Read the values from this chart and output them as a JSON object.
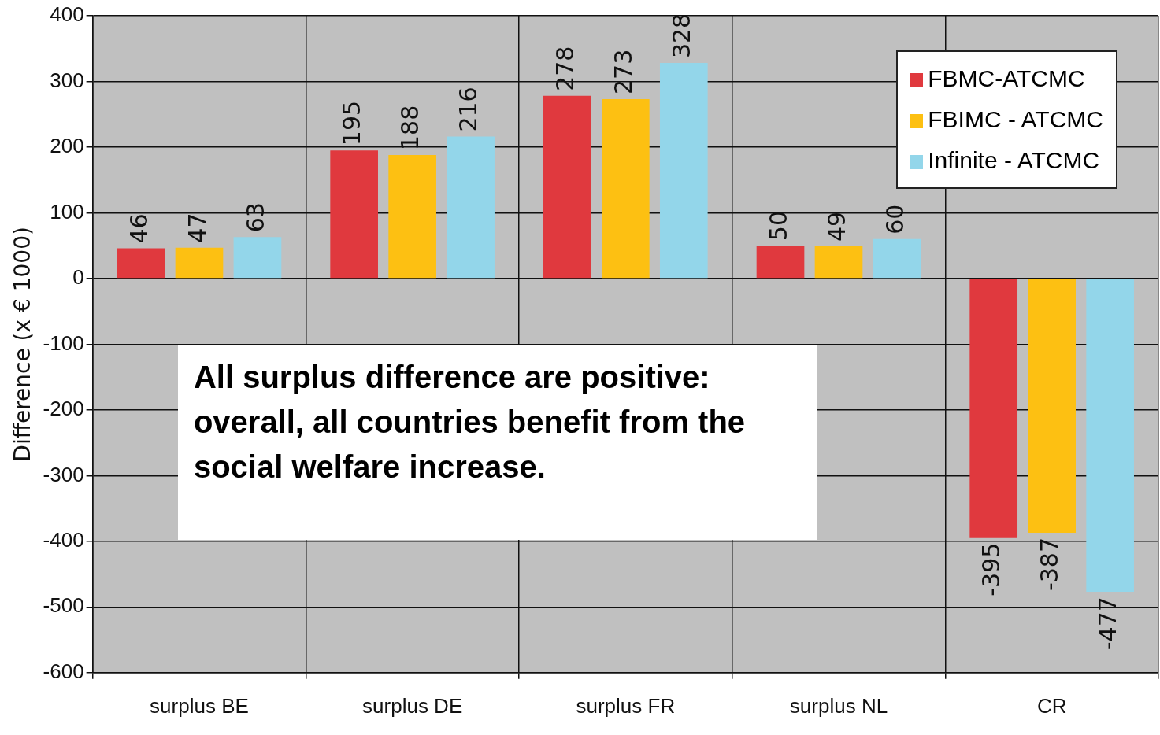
{
  "chart_data": {
    "type": "bar",
    "ylabel": "Difference (x € 1000)",
    "categories": [
      "surplus BE",
      "surplus DE",
      "surplus FR",
      "surplus NL",
      "CR"
    ],
    "series": [
      {
        "name": "FBMC-ATCMC",
        "color": "#e0393e",
        "values": [
          46,
          195,
          278,
          50,
          -395
        ]
      },
      {
        "name": "FBIMC - ATCMC",
        "color": "#fdc012",
        "values": [
          47,
          188,
          273,
          49,
          -387
        ]
      },
      {
        "name": "Infinite - ATCMC",
        "color": "#93d6ea",
        "values": [
          63,
          216,
          328,
          60,
          -477
        ]
      }
    ],
    "ylim": [
      -600,
      400
    ],
    "yticks": [
      -600,
      -500,
      -400,
      -300,
      -200,
      -100,
      0,
      100,
      200,
      300,
      400
    ],
    "grid": true,
    "legend": "top right",
    "data_labels": true,
    "annotations": [
      "All surplus difference are positive: overall, all countries benefit from the social welfare increase."
    ]
  }
}
